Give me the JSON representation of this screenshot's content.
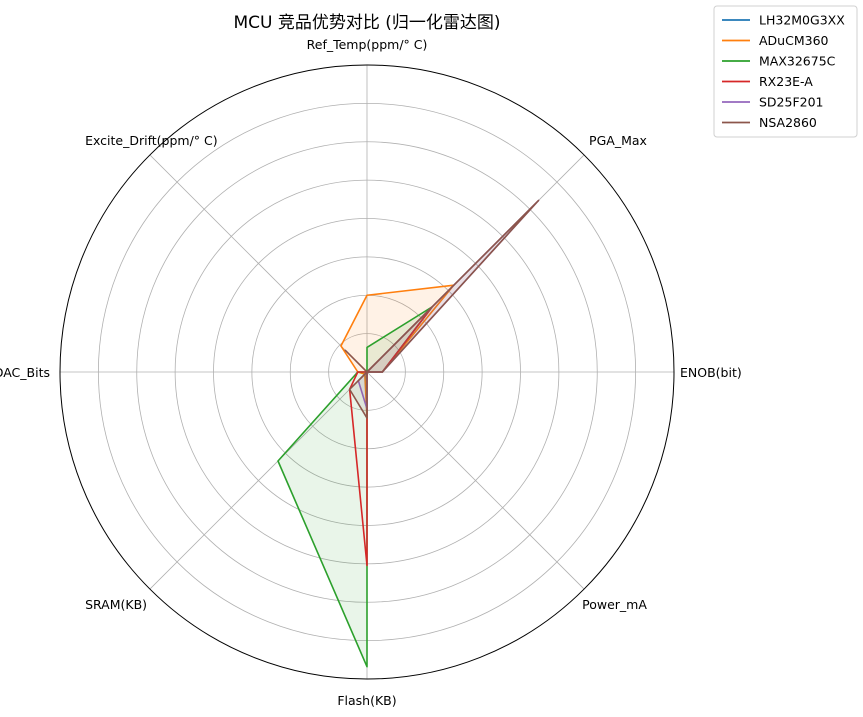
{
  "chart_data": {
    "type": "radar",
    "title": "MCU 竞品优势对比 (归一化雷达图)",
    "axes": [
      "ENOB(bit)",
      "PGA_Max",
      "Ref_Temp(ppm/° C)",
      "Excite_Drift(ppm/° C)",
      "DAC_Bits",
      "SRAM(KB)",
      "Flash(KB)",
      "Power_mA"
    ],
    "rlim": [
      0,
      1
    ],
    "grid": true,
    "gridlines": [
      0.125,
      0.25,
      0.375,
      0.5,
      0.625,
      0.75,
      0.875
    ],
    "legend_position": "upper-right-outside",
    "series": [
      {
        "name": "LH32M0G3XX",
        "color": "#1f77b4",
        "fill": false,
        "values": [
          0.05,
          0.3,
          0.0,
          0.0,
          0.0,
          0.01,
          0.05,
          0.0
        ]
      },
      {
        "name": "ADuCM360",
        "color": "#ff7f0e",
        "fill": true,
        "values": [
          0.05,
          0.4,
          0.25,
          0.12,
          0.03,
          0.01,
          0.15,
          0.0
        ]
      },
      {
        "name": "MAX32675C",
        "color": "#2ca02c",
        "fill": true,
        "values": [
          0.05,
          0.3,
          0.08,
          0.0,
          0.03,
          0.41,
          0.96,
          0.0
        ]
      },
      {
        "name": "RX23E-A",
        "color": "#d62728",
        "fill": false,
        "values": [
          0.05,
          0.3,
          0.0,
          0.0,
          0.03,
          0.08,
          0.63,
          0.0
        ]
      },
      {
        "name": "SD25F201",
        "color": "#9467bd",
        "fill": true,
        "values": [
          0.05,
          0.79,
          0.0,
          0.0,
          0.0,
          0.04,
          0.12,
          0.0
        ]
      },
      {
        "name": "NSA2860",
        "color": "#8c564b",
        "fill": true,
        "values": [
          0.05,
          0.79,
          0.0,
          0.1,
          0.0,
          0.08,
          0.15,
          0.0
        ]
      }
    ]
  }
}
